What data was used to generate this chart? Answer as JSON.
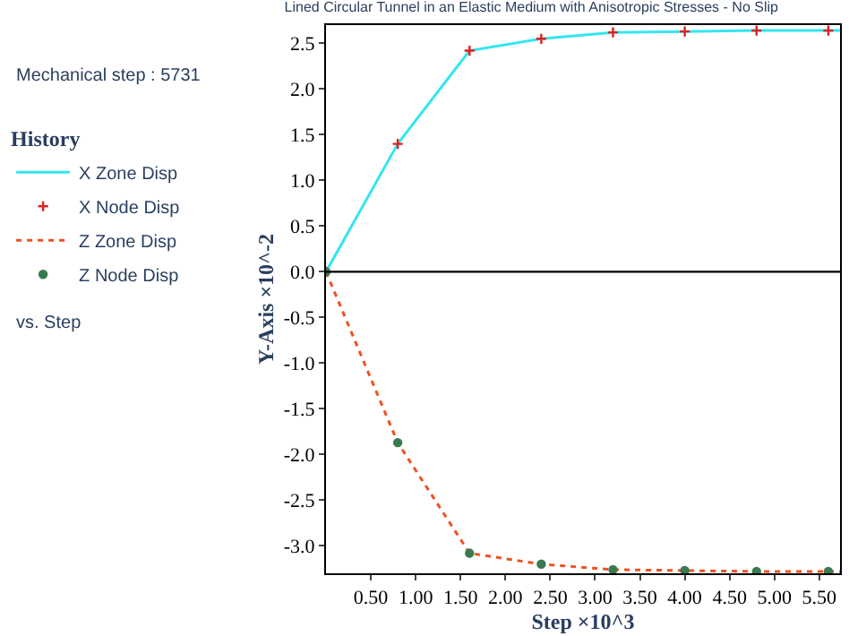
{
  "chart_data": {
    "type": "line",
    "title": "Lined Circular Tunnel in an Elastic Medium with Anisotropic Stresses - No Slip",
    "xlabel": "Step ×10^3",
    "ylabel": "Y-Axis ×10^-2",
    "legend_title": "History",
    "legend": "left",
    "annotations": [
      "Mechanical step : 5731",
      "vs. Step"
    ],
    "xlim": [
      0,
      5.731
    ],
    "ylim": [
      -3.3,
      2.7
    ],
    "xticks": [
      {
        "value": 0.5,
        "label": "0.50"
      },
      {
        "value": 1,
        "label": "1.00"
      },
      {
        "value": 1.5,
        "label": "1.50"
      },
      {
        "value": 2,
        "label": "2.00"
      },
      {
        "value": 2.5,
        "label": "2.50"
      },
      {
        "value": 3,
        "label": "3.00"
      },
      {
        "value": 3.5,
        "label": "3.50"
      },
      {
        "value": 4,
        "label": "4.00"
      },
      {
        "value": 4.5,
        "label": "4.50"
      },
      {
        "value": 5,
        "label": "5.00"
      },
      {
        "value": 5.5,
        "label": "5.50"
      }
    ],
    "yticks": [
      2.5,
      {
        "value": 2,
        "label": "2.0"
      },
      1.5,
      {
        "value": 1,
        "label": "1.0"
      },
      0.5,
      {
        "value": 0,
        "label": "0.0"
      },
      -0.5,
      {
        "value": -1,
        "label": "-1.0"
      },
      -1.5,
      {
        "value": -2,
        "label": "-2.0"
      },
      -2.5,
      {
        "value": -3,
        "label": "-3.0"
      }
    ],
    "ref_lines": [
      {
        "axis": "y",
        "value": 0,
        "color": "#000000"
      }
    ],
    "series": [
      {
        "name": "X Zone Disp",
        "color": "#33e6f0",
        "line_style": "solid",
        "x": [
          0,
          0.8,
          1.6,
          2.4,
          3.2,
          4.0,
          4.8,
          5.6,
          5.731
        ],
        "values": [
          0,
          1.4,
          2.42,
          2.55,
          2.62,
          2.63,
          2.64,
          2.64,
          2.64
        ]
      },
      {
        "name": "X Node Disp",
        "type": "scatter",
        "color": "#e02020",
        "marker": "cross",
        "x": [
          0,
          0.8,
          1.6,
          2.4,
          3.2,
          4.0,
          4.8,
          5.6
        ],
        "values": [
          0,
          1.4,
          2.42,
          2.55,
          2.62,
          2.63,
          2.64,
          2.64
        ]
      },
      {
        "name": "Z Zone Disp",
        "color": "#f05020",
        "line_style": "dotted",
        "x": [
          0,
          0.8,
          1.6,
          2.4,
          3.2,
          4.0,
          4.8,
          5.6,
          5.731
        ],
        "values": [
          0,
          -1.87,
          -3.08,
          -3.2,
          -3.26,
          -3.27,
          -3.28,
          -3.28,
          -3.28
        ]
      },
      {
        "name": "Z Node Disp",
        "type": "scatter",
        "color": "#3a7a50",
        "marker": "circle",
        "x": [
          0,
          0.8,
          1.6,
          2.4,
          3.2,
          4.0,
          4.8,
          5.6
        ],
        "values": [
          0,
          -1.87,
          -3.08,
          -3.2,
          -3.26,
          -3.27,
          -3.28,
          -3.28
        ]
      }
    ]
  }
}
